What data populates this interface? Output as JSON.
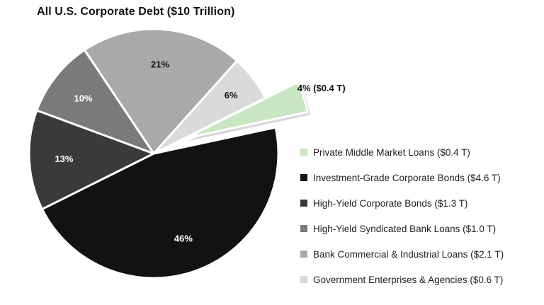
{
  "chart_data": {
    "type": "pie",
    "title": "All U.S. Corporate Debt ($10 Trillion)",
    "slices": [
      {
        "name": "Private Middle Market Loans ($0.4 T)",
        "value": 4,
        "label": "4% ($0.4 T)",
        "color": "#c8e6c0",
        "exploded": true
      },
      {
        "name": "Investment-Grade Corporate Bonds ($4.6 T)",
        "value": 46,
        "label": "46%",
        "color": "#121212",
        "exploded": false
      },
      {
        "name": "High-Yield Corporate Bonds ($1.3 T)",
        "value": 13,
        "label": "13%",
        "color": "#3b3a38",
        "exploded": false
      },
      {
        "name": "High-Yield Syndicated Bank Loans ($1.0 T)",
        "value": 10,
        "label": "10%",
        "color": "#7a7a7a",
        "exploded": false
      },
      {
        "name": "Bank Commercial & Industrial Loans ($2.1 T)",
        "value": 21,
        "label": "21%",
        "color": "#a9a9a9",
        "exploded": false
      },
      {
        "name": "Government Enterprises & Agencies ($0.6 T)",
        "value": 6,
        "label": "6%",
        "color": "#dadada",
        "exploded": false
      }
    ],
    "legend_position": "right"
  }
}
